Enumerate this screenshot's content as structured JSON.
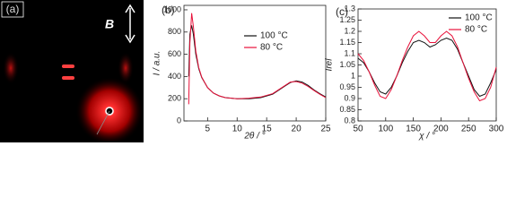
{
  "panel_a": {
    "label": "(a)",
    "field_label": "B"
  },
  "chart_data": [
    {
      "type": "line",
      "panel_label": "(b)",
      "x_label": "2θ / °",
      "y_label": "I / a.u.",
      "xlim": [
        1,
        25
      ],
      "xticks": [
        5,
        10,
        15,
        20,
        25
      ],
      "ylim": [
        0,
        1040
      ],
      "yticks": [
        0,
        200,
        400,
        600,
        800,
        1000
      ],
      "x": [
        1.8,
        2.0,
        2.3,
        2.6,
        3,
        3.5,
        4,
        5,
        6,
        7,
        8,
        10,
        12,
        14,
        16,
        18,
        19,
        20,
        21,
        22,
        23,
        24,
        25
      ],
      "series": [
        {
          "name": "100 °C",
          "color": "#111111",
          "values": [
            400,
            780,
            860,
            780,
            600,
            470,
            390,
            300,
            250,
            225,
            210,
            200,
            200,
            210,
            240,
            310,
            345,
            360,
            350,
            320,
            280,
            245,
            215
          ]
        },
        {
          "name": "80 °C",
          "color": "#e8113a",
          "values": [
            150,
            700,
            970,
            850,
            630,
            480,
            395,
            300,
            250,
            225,
            210,
            200,
            205,
            215,
            245,
            315,
            350,
            355,
            340,
            310,
            275,
            240,
            210
          ]
        }
      ]
    },
    {
      "type": "line",
      "panel_label": "(c)",
      "x_label": "χ / °",
      "y_label": "Irel",
      "xlim": [
        50,
        300
      ],
      "xticks": [
        50,
        100,
        150,
        200,
        250,
        300
      ],
      "ylim": [
        0.8,
        1.3
      ],
      "yticks": [
        0.8,
        0.85,
        0.9,
        0.95,
        1.0,
        1.05,
        1.1,
        1.15,
        1.2,
        1.25,
        1.3
      ],
      "x": [
        50,
        60,
        70,
        80,
        90,
        100,
        110,
        120,
        130,
        140,
        150,
        160,
        170,
        180,
        190,
        200,
        210,
        220,
        230,
        240,
        250,
        260,
        270,
        280,
        290,
        300
      ],
      "series": [
        {
          "name": "100 °C",
          "color": "#111111",
          "values": [
            1.08,
            1.06,
            1.02,
            0.97,
            0.93,
            0.92,
            0.95,
            1.0,
            1.06,
            1.11,
            1.15,
            1.16,
            1.15,
            1.13,
            1.14,
            1.16,
            1.17,
            1.16,
            1.12,
            1.06,
            1.0,
            0.94,
            0.91,
            0.92,
            0.97,
            1.03
          ]
        },
        {
          "name": "80 °C",
          "color": "#e8113a",
          "values": [
            1.1,
            1.07,
            1.02,
            0.96,
            0.91,
            0.9,
            0.94,
            1.0,
            1.07,
            1.13,
            1.18,
            1.2,
            1.18,
            1.15,
            1.15,
            1.18,
            1.2,
            1.18,
            1.13,
            1.06,
            0.99,
            0.93,
            0.89,
            0.9,
            0.95,
            1.04
          ]
        }
      ]
    }
  ]
}
